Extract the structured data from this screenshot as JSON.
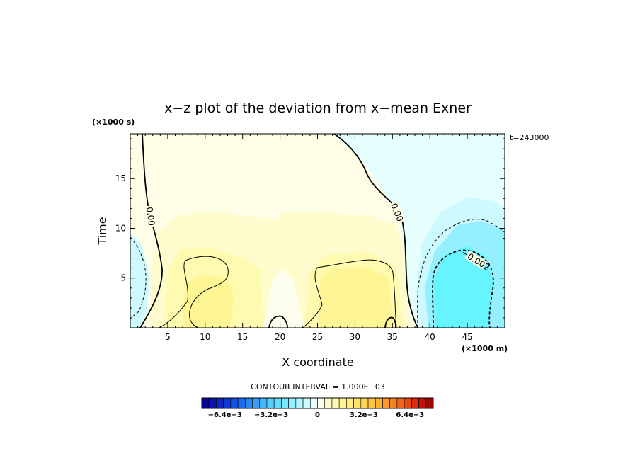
{
  "chart_data": {
    "type": "heatmap",
    "title": "x−z plot of the deviation from x−mean Exner",
    "xlabel": "X coordinate",
    "ylabel": "Time",
    "x_unit": "(×1000 m)",
    "y_unit": "(×1000 s)",
    "time_label": "t=243000",
    "xlim": [
      0,
      50
    ],
    "ylim": [
      0,
      19.5
    ],
    "x_ticks": [
      5,
      10,
      15,
      20,
      25,
      30,
      35,
      40,
      45
    ],
    "y_ticks": [
      5,
      10,
      15
    ],
    "x_tick_labels": [
      "5",
      "10",
      "15",
      "20",
      "25",
      "30",
      "35",
      "40",
      "45"
    ],
    "y_tick_labels": [
      "5",
      "10",
      "15"
    ],
    "contour_interval_text": "CONTOUR INTERVAL = 1.000E−03",
    "contour_labels": [
      {
        "text": "0.00",
        "x": 2.7,
        "y": 11.2,
        "angle": 82
      },
      {
        "text": "0.00",
        "x": 35.6,
        "y": 11.6,
        "angle": 68
      },
      {
        "text": "−0.002",
        "x": 46.1,
        "y": 6.8,
        "angle": 32
      }
    ],
    "colorbar": {
      "min": -0.008,
      "max": 0.008,
      "n_bins": 32,
      "tick_values": [
        -0.0064,
        -0.0032,
        0,
        0.0032,
        0.0064
      ],
      "tick_labels": [
        "−6.4e−3",
        "−3.2e−3",
        "0",
        "3.2e−3",
        "6.4e−3"
      ],
      "colors": [
        "#08088e",
        "#0a16a8",
        "#0c28c0",
        "#0e3ad4",
        "#1452e6",
        "#1c6aee",
        "#2886f2",
        "#36a0f6",
        "#44b8fa",
        "#54ccfc",
        "#66dcfe",
        "#7ae8fe",
        "#94f0fe",
        "#b0f6fe",
        "#ccfafe",
        "#e6fefe",
        "#fefee6",
        "#fefccc",
        "#fefab0",
        "#fef694",
        "#feee7a",
        "#fee266",
        "#fed454",
        "#fec444",
        "#fcb036",
        "#fa9a2a",
        "#f6821e",
        "#f26616",
        "#ea4810",
        "#dc2a0a",
        "#c41008",
        "#9c0806"
      ]
    }
  }
}
